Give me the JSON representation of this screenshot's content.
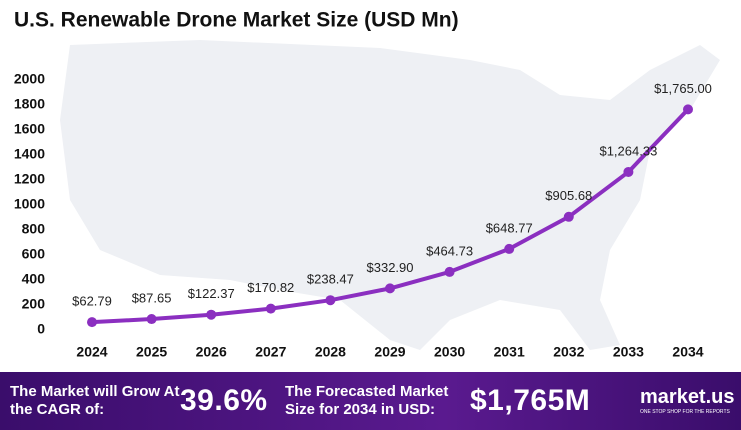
{
  "chart_data": {
    "type": "line",
    "title": "U.S. Renewable Drone Market Size (USD Mn)",
    "categories": [
      "2024",
      "2025",
      "2026",
      "2027",
      "2028",
      "2029",
      "2030",
      "2031",
      "2032",
      "2033",
      "2034"
    ],
    "values": [
      62.79,
      87.65,
      122.37,
      170.82,
      238.47,
      332.9,
      464.73,
      648.77,
      905.68,
      1264.33,
      1765.0
    ],
    "value_labels": [
      "$62.79",
      "$87.65",
      "$122.37",
      "$170.82",
      "$238.47",
      "$332.90",
      "$464.73",
      "$648.77",
      "$905.68",
      "$1,264.33",
      "$1,765.00"
    ],
    "color": "#8b2fc0",
    "ylim": [
      0,
      2000
    ],
    "yticks": [
      0,
      200,
      400,
      600,
      800,
      1000,
      1200,
      1400,
      1600,
      1800,
      2000
    ],
    "grid": false
  },
  "footer": {
    "cagr_text": "The Market will Grow At the CAGR of:",
    "cagr": "39.6%",
    "forecast_text": "The Forecasted Market Size for 2034 in USD:",
    "forecast": "$1,765M",
    "brand": "market.us",
    "tagline": "ONE STOP SHOP FOR THE REPORTS"
  }
}
